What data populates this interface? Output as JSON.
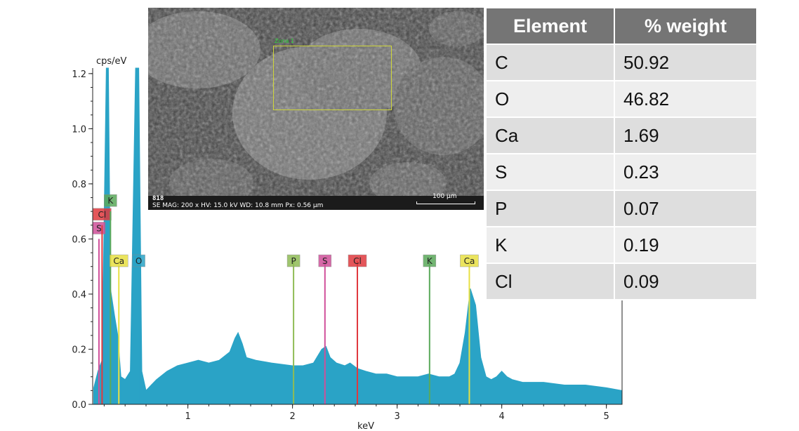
{
  "colors": {
    "spectrum": "#2aa3c6",
    "P": "#8fbc55",
    "S": "#d0509a",
    "Cl": "#e0393e",
    "K": "#5aa95a",
    "Ca": "#e8e043",
    "O": "#2aa3c6"
  },
  "sem": {
    "zone_label": "Zona 1",
    "image_id": "818",
    "params": "SE  MAG: 200 x  HV: 15.0 kV  WD: 10.8 mm  Px: 0.56 µm",
    "scale_label": "100 µm"
  },
  "table": {
    "headers": [
      "Element",
      "% weight"
    ],
    "rows": [
      {
        "element": "C",
        "weight": "50.92"
      },
      {
        "element": "O",
        "weight": "46.82"
      },
      {
        "element": "Ca",
        "weight": "1.69"
      },
      {
        "element": "S",
        "weight": "0.23"
      },
      {
        "element": "P",
        "weight": "0.07"
      },
      {
        "element": "K",
        "weight": "0.19"
      },
      {
        "element": "Cl",
        "weight": "0.09"
      }
    ]
  },
  "chart_data": {
    "type": "area",
    "title": "",
    "xlabel": "keV",
    "ylabel": "cps/eV",
    "xlim": [
      0.09,
      5.15
    ],
    "ylim": [
      0,
      1.22
    ],
    "xticks": [
      1,
      2,
      3,
      4,
      5
    ],
    "yticks": [
      0.0,
      0.2,
      0.4,
      0.6,
      0.8,
      1.0,
      1.2
    ],
    "ytick_labels": [
      "0.0",
      "0.2",
      "0.4",
      "0.6",
      "0.8",
      "1.0",
      "1.2"
    ],
    "series": [
      {
        "x": [
          0.1,
          0.14,
          0.18,
          0.22,
          0.24,
          0.26,
          0.3,
          0.33,
          0.36,
          0.4,
          0.45,
          0.5,
          0.53,
          0.56,
          0.6,
          0.65,
          0.7,
          0.8,
          0.9,
          1.0,
          1.1,
          1.2,
          1.3,
          1.4,
          1.45,
          1.48,
          1.52,
          1.56,
          1.65,
          1.8,
          2.0,
          2.1,
          2.2,
          2.28,
          2.32,
          2.36,
          2.42,
          2.5,
          2.55,
          2.62,
          2.7,
          2.8,
          2.9,
          3.0,
          3.1,
          3.2,
          3.3,
          3.4,
          3.5,
          3.55,
          3.6,
          3.65,
          3.7,
          3.75,
          3.8,
          3.85,
          3.9,
          3.95,
          4.0,
          4.05,
          4.1,
          4.2,
          4.4,
          4.6,
          4.8,
          5.0,
          5.15
        ],
        "y": [
          0.06,
          0.12,
          0.16,
          1.22,
          1.22,
          0.42,
          0.32,
          0.25,
          0.1,
          0.09,
          0.12,
          1.22,
          1.22,
          0.12,
          0.05,
          0.07,
          0.09,
          0.12,
          0.14,
          0.15,
          0.16,
          0.15,
          0.16,
          0.19,
          0.24,
          0.26,
          0.22,
          0.17,
          0.16,
          0.15,
          0.14,
          0.14,
          0.15,
          0.2,
          0.21,
          0.17,
          0.15,
          0.14,
          0.15,
          0.13,
          0.12,
          0.11,
          0.11,
          0.1,
          0.1,
          0.1,
          0.11,
          0.1,
          0.1,
          0.11,
          0.15,
          0.26,
          0.42,
          0.36,
          0.17,
          0.1,
          0.09,
          0.1,
          0.12,
          0.1,
          0.09,
          0.08,
          0.08,
          0.07,
          0.07,
          0.06,
          0.05
        ]
      }
    ],
    "peak_markers": [
      {
        "label": "S",
        "x": 0.15,
        "height": 0.6
      },
      {
        "label": "Cl",
        "x": 0.18,
        "height": 0.65
      },
      {
        "label": "K",
        "x": 0.26,
        "height": 0.7
      },
      {
        "label": "Ca",
        "x": 0.34,
        "height": 0.52
      },
      {
        "label": "O",
        "x": 0.53,
        "height": 0.52
      },
      {
        "label": "P",
        "x": 2.01,
        "height": 0.52
      },
      {
        "label": "S",
        "x": 2.31,
        "height": 0.52
      },
      {
        "label": "Cl",
        "x": 2.62,
        "height": 0.52
      },
      {
        "label": "K",
        "x": 3.31,
        "height": 0.52
      },
      {
        "label": "Ca",
        "x": 3.69,
        "height": 0.52
      }
    ]
  }
}
